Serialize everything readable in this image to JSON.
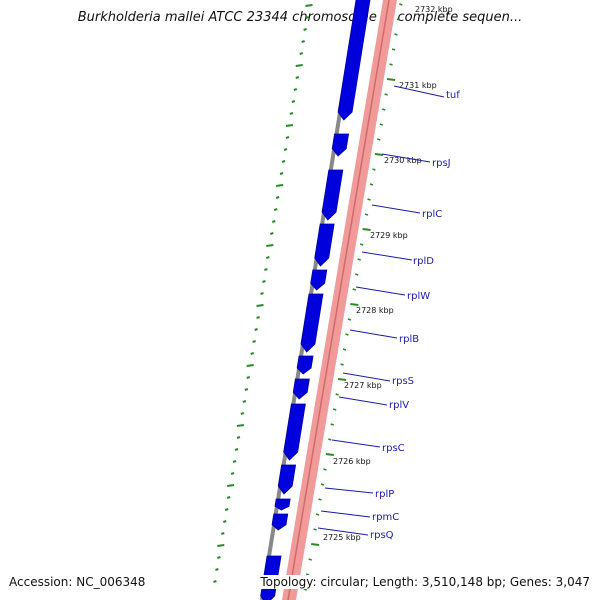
{
  "title": "Burkholderia mallei ATCC 23344 chromosome 1, complete sequen...",
  "footer": {
    "accession": "Accession: NC_006348",
    "topology": "Topology: circular; Length: 3,510,148 bp; Genes: 3,047"
  },
  "kbp_labels": [
    "2732 kbp",
    "2731 kbp",
    "2730 kbp",
    "2729 kbp",
    "2728 kbp",
    "2727 kbp",
    "2726 kbp",
    "2725 kbp"
  ],
  "gene_labels": [
    "tuf",
    "rpsJ",
    "rplC",
    "rplD",
    "rplW",
    "rplB",
    "rpsS",
    "rplV",
    "rpsC",
    "rplP",
    "rpmC",
    "rpsQ"
  ],
  "colors": {
    "cds_forward": "#0000dd",
    "cds_track": "#f09a9a",
    "backbone": "#888888",
    "tick": "#2a8a2a",
    "gene_label": "#1a1aa6"
  }
}
